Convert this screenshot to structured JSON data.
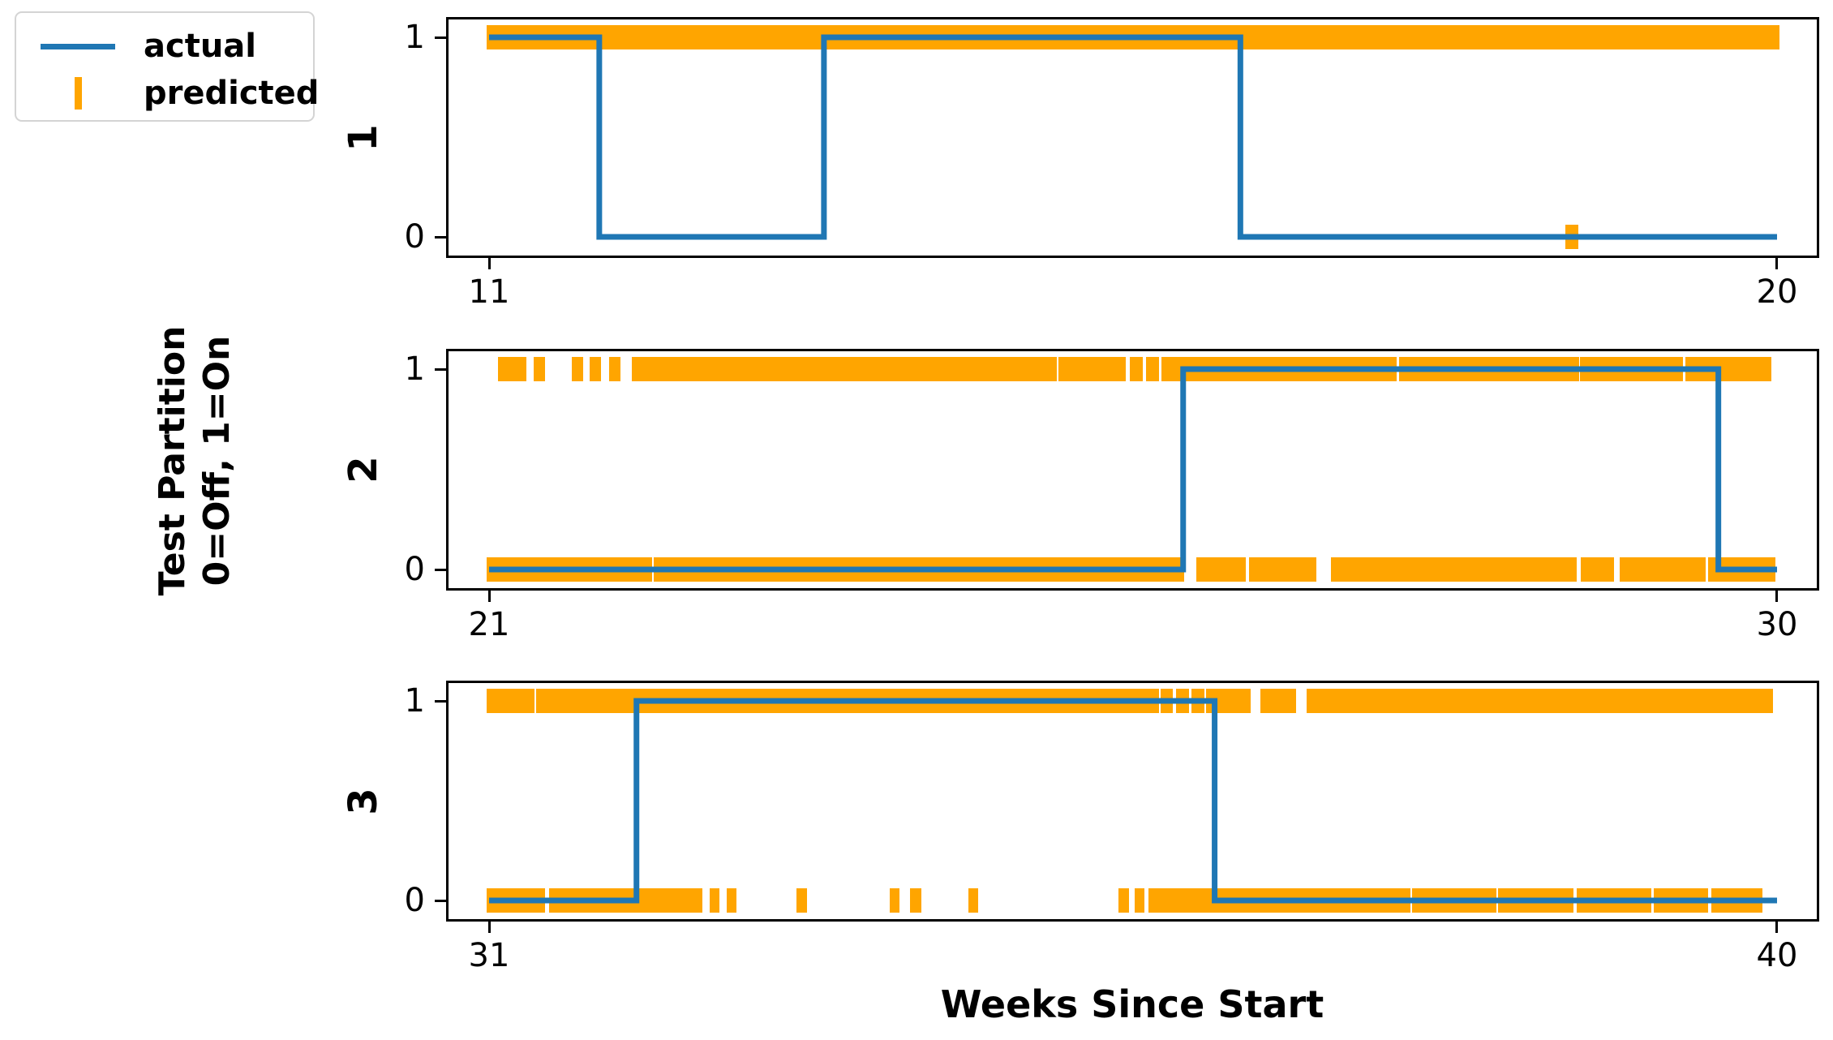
{
  "chart_data": {
    "type": "line",
    "subtype": "binary-step-timeseries-with-event-ticks",
    "title": "",
    "xlabel": "Weeks Since Start",
    "ylabel": "Test Partition\n0=Off, 1=On",
    "ytick_labels": [
      "0",
      "1"
    ],
    "ylim": [
      -0.1,
      1.1
    ],
    "grid": false,
    "legend_position": "upper-left-outside-axes",
    "colors": {
      "actual": "#1f77b4",
      "predicted": "#ffa500",
      "spine": "#000000"
    },
    "legend": {
      "items": [
        {
          "label": "actual",
          "marker": "line",
          "color": "#1f77b4"
        },
        {
          "label": "predicted",
          "marker": "vertical-tick",
          "color": "#ffa500"
        }
      ]
    },
    "panels": [
      {
        "row_label": "1",
        "x_start": 11,
        "x_end": 20,
        "xtick_values": [
          11,
          20
        ],
        "xtick_labels": [
          "11",
          "20"
        ],
        "actual_steps": [
          [
            11,
            1
          ],
          [
            11.77,
            1
          ],
          [
            11.77,
            0
          ],
          [
            13.34,
            0
          ],
          [
            13.34,
            1
          ],
          [
            16.25,
            1
          ],
          [
            16.25,
            0
          ],
          [
            20,
            0
          ]
        ],
        "predicted_on_intervals": [
          [
            11.0,
            20.0
          ]
        ],
        "predicted_off_intervals": [
          [
            18.54,
            18.59
          ]
        ]
      },
      {
        "row_label": "2",
        "x_start": 21,
        "x_end": 30,
        "xtick_values": [
          21,
          30
        ],
        "xtick_labels": [
          "21",
          "30"
        ],
        "actual_steps": [
          [
            21,
            0
          ],
          [
            25.85,
            0
          ],
          [
            25.85,
            1
          ],
          [
            29.59,
            1
          ],
          [
            29.59,
            0
          ],
          [
            30,
            0
          ]
        ],
        "predicted_on_intervals": [
          [
            21.08,
            21.12
          ],
          [
            21.14,
            21.18
          ],
          [
            21.2,
            21.24
          ],
          [
            21.33,
            21.37
          ],
          [
            21.6,
            21.64
          ],
          [
            21.72,
            21.76
          ],
          [
            21.86,
            21.9
          ],
          [
            22.02,
            22.38
          ],
          [
            22.4,
            22.51
          ],
          [
            22.54,
            22.66
          ],
          [
            22.69,
            22.8
          ],
          [
            22.82,
            22.9
          ],
          [
            22.92,
            23.05
          ],
          [
            23.07,
            23.1
          ],
          [
            23.12,
            23.3
          ],
          [
            23.33,
            23.49
          ],
          [
            23.52,
            23.56
          ],
          [
            23.58,
            23.9
          ],
          [
            23.93,
            24.4
          ],
          [
            24.44,
            24.95
          ],
          [
            25.0,
            25.43
          ],
          [
            25.5,
            25.55
          ],
          [
            25.61,
            25.66
          ],
          [
            25.72,
            25.87
          ],
          [
            25.9,
            26.09
          ],
          [
            26.12,
            26.55
          ],
          [
            26.59,
            27.32
          ],
          [
            27.38,
            28.02
          ],
          [
            28.06,
            28.6
          ],
          [
            28.64,
            29.32
          ],
          [
            29.38,
            29.94
          ]
        ],
        "predicted_off_intervals": [
          [
            21.0,
            22.12
          ],
          [
            22.17,
            22.24
          ],
          [
            22.28,
            23.02
          ],
          [
            23.06,
            25.84
          ],
          [
            25.96,
            26.27
          ],
          [
            26.33,
            26.76
          ],
          [
            26.9,
            28.58
          ],
          [
            28.65,
            28.84
          ],
          [
            28.92,
            29.48
          ],
          [
            29.54,
            29.97
          ]
        ]
      },
      {
        "row_label": "3",
        "x_start": 31,
        "x_end": 40,
        "xtick_values": [
          31,
          40
        ],
        "xtick_labels": [
          "31",
          "40"
        ],
        "actual_steps": [
          [
            31,
            0
          ],
          [
            32.03,
            0
          ],
          [
            32.03,
            1
          ],
          [
            36.07,
            1
          ],
          [
            36.07,
            0
          ],
          [
            40,
            0
          ]
        ],
        "predicted_on_intervals": [
          [
            31.0,
            31.06
          ],
          [
            31.1,
            31.18
          ],
          [
            31.22,
            31.3
          ],
          [
            31.35,
            31.81
          ],
          [
            31.85,
            31.96
          ],
          [
            32.0,
            32.22
          ],
          [
            32.26,
            35.66
          ],
          [
            35.71,
            35.76
          ],
          [
            35.82,
            35.87
          ],
          [
            35.93,
            35.98
          ],
          [
            36.03,
            36.12
          ],
          [
            36.16,
            36.21
          ],
          [
            36.25,
            36.3
          ],
          [
            36.41,
            36.5
          ],
          [
            36.54,
            36.62
          ],
          [
            36.73,
            39.95
          ]
        ],
        "predicted_off_intervals": [
          [
            31.0,
            31.37
          ],
          [
            31.44,
            31.54
          ],
          [
            31.58,
            32.33
          ],
          [
            32.37,
            32.4
          ],
          [
            32.44,
            32.47
          ],
          [
            32.56,
            32.59
          ],
          [
            32.68,
            32.71
          ],
          [
            33.17,
            33.2
          ],
          [
            33.82,
            33.85
          ],
          [
            33.96,
            34.0
          ],
          [
            34.37,
            34.4
          ],
          [
            35.42,
            35.45
          ],
          [
            35.53,
            35.56
          ],
          [
            35.63,
            37.42
          ],
          [
            37.47,
            38.02
          ],
          [
            38.07,
            38.56
          ],
          [
            38.62,
            39.1
          ],
          [
            39.16,
            39.5
          ],
          [
            39.56,
            39.88
          ]
        ]
      }
    ]
  }
}
